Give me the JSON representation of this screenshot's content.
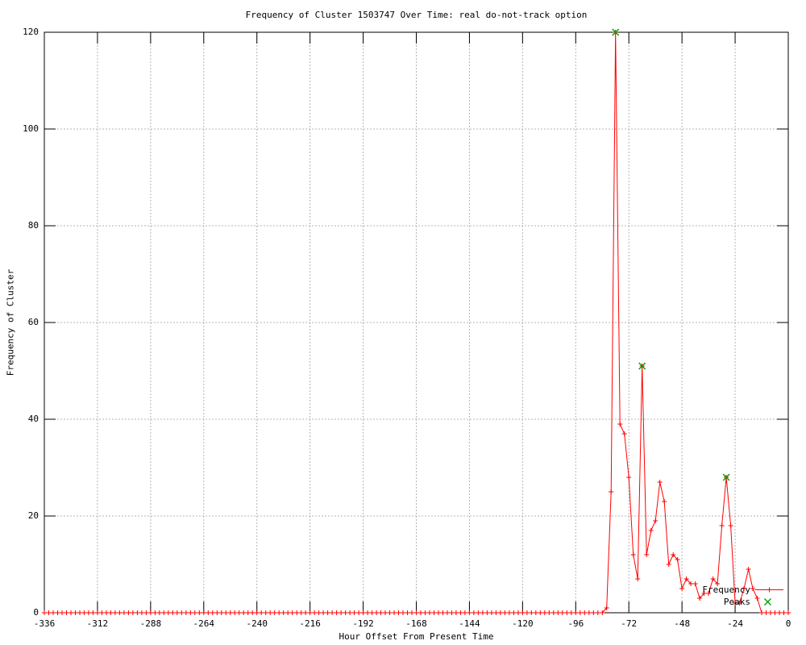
{
  "page": {
    "background": "#ffffff"
  },
  "chart_data": {
    "type": "line",
    "title": "Frequency of Cluster 1503747 Over Time: real do-not-track option",
    "xlabel": "Hour Offset From Present Time",
    "ylabel": "Frequency of Cluster",
    "xlim": [
      -336,
      0
    ],
    "ylim": [
      0,
      120
    ],
    "x_ticks": [
      -336,
      -312,
      -288,
      -264,
      -240,
      -216,
      -192,
      -168,
      -144,
      -120,
      -96,
      -72,
      -48,
      -24,
      0
    ],
    "y_ticks": [
      0,
      20,
      40,
      60,
      80,
      100,
      120
    ],
    "grid": true,
    "grid_style": "dotted",
    "legend_position": "inside-bottom-right",
    "colors": {
      "frequency": "#ff0000",
      "peaks": "#00a000",
      "grid": "#b4b4b4",
      "axis": "#000000"
    },
    "series": [
      {
        "name": "Frequency",
        "color": "#ff0000",
        "marker": "plus",
        "style": "lines+points",
        "baseline_zeros": {
          "from": -336,
          "to": -86,
          "step": 2,
          "value": 0
        },
        "points": [
          [
            -84,
            0
          ],
          [
            -82,
            1
          ],
          [
            -80,
            25
          ],
          [
            -78,
            120
          ],
          [
            -76,
            39
          ],
          [
            -74,
            37
          ],
          [
            -72,
            28
          ],
          [
            -70,
            12
          ],
          [
            -68,
            7
          ],
          [
            -66,
            51
          ],
          [
            -64,
            12
          ],
          [
            -62,
            17
          ],
          [
            -60,
            19
          ],
          [
            -58,
            27
          ],
          [
            -56,
            23
          ],
          [
            -54,
            10
          ],
          [
            -52,
            12
          ],
          [
            -50,
            11
          ],
          [
            -48,
            5
          ],
          [
            -46,
            7
          ],
          [
            -44,
            6
          ],
          [
            -42,
            6
          ],
          [
            -40,
            3
          ],
          [
            -38,
            4
          ],
          [
            -36,
            4
          ],
          [
            -34,
            7
          ],
          [
            -32,
            6
          ],
          [
            -30,
            18
          ],
          [
            -28,
            28
          ],
          [
            -26,
            18
          ],
          [
            -24,
            2
          ],
          [
            -22,
            2
          ],
          [
            -20,
            5
          ],
          [
            -18,
            9
          ],
          [
            -16,
            5
          ],
          [
            -14,
            3
          ],
          [
            -12,
            0
          ],
          [
            -10,
            0
          ],
          [
            -8,
            0
          ],
          [
            -6,
            0
          ],
          [
            -4,
            0
          ],
          [
            -2,
            0
          ],
          [
            0,
            0
          ]
        ]
      },
      {
        "name": "Peaks",
        "color": "#00a000",
        "marker": "cross",
        "style": "points",
        "points": [
          [
            -78,
            120
          ],
          [
            -66,
            51
          ],
          [
            -28,
            28
          ]
        ]
      }
    ]
  }
}
